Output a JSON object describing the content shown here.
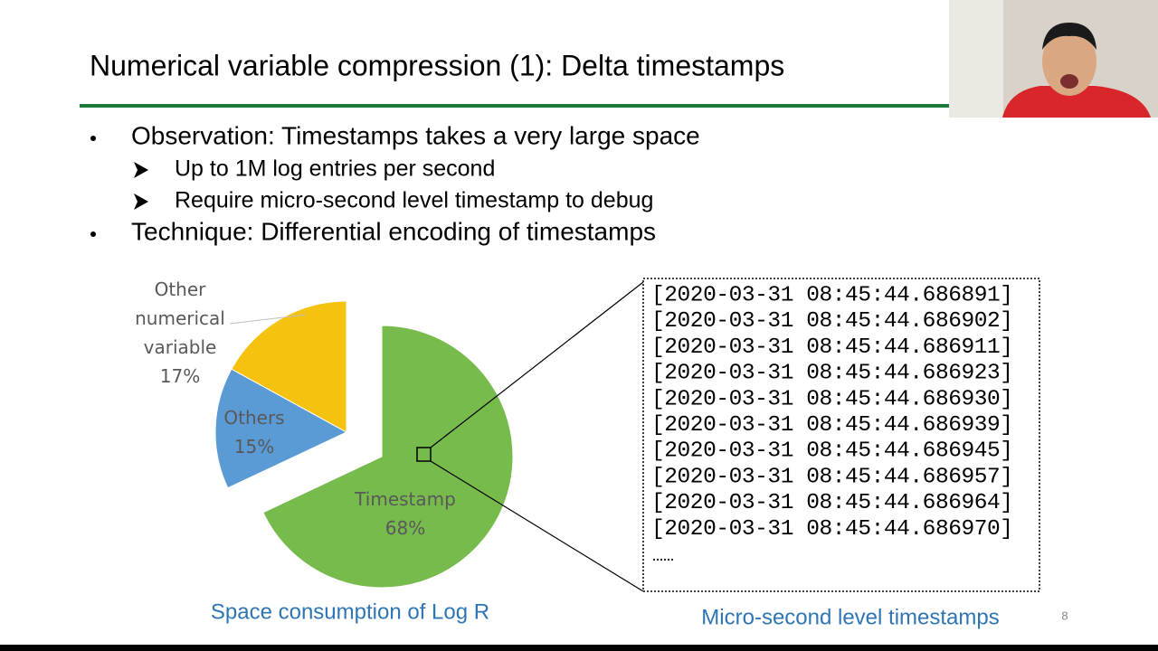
{
  "slide": {
    "title": "Numerical variable compression (1): Delta timestamps",
    "bullets": [
      {
        "text": "Observation: Timestamps takes a very large space",
        "sub": [
          "Up to 1M log entries per second",
          "Require micro-second level timestamp to debug"
        ]
      },
      {
        "text": "Technique: Differential encoding of timestamps",
        "sub": []
      }
    ],
    "timestamps": [
      "[2020-03-31 08:45:44.686891]",
      "[2020-03-31 08:45:44.686902]",
      "[2020-03-31 08:45:44.686911]",
      "[2020-03-31 08:45:44.686923]",
      "[2020-03-31 08:45:44.686930]",
      "[2020-03-31 08:45:44.686939]",
      "[2020-03-31 08:45:44.686945]",
      "[2020-03-31 08:45:44.686957]",
      "[2020-03-31 08:45:44.686964]",
      "[2020-03-31 08:45:44.686970]"
    ],
    "ellipsis": "……",
    "timestamps_caption": "Micro-second level timestamps",
    "page_number": "8"
  },
  "chart_data": {
    "type": "pie",
    "title": "Space consumption of Log R",
    "categories": [
      "Timestamp",
      "Others",
      "Other numerical variable"
    ],
    "values": [
      68,
      15,
      17
    ],
    "value_labels": [
      "68%",
      "15%",
      "17%"
    ],
    "colors": [
      "#77bb4c",
      "#5b9bd5",
      "#f5c20f"
    ]
  }
}
